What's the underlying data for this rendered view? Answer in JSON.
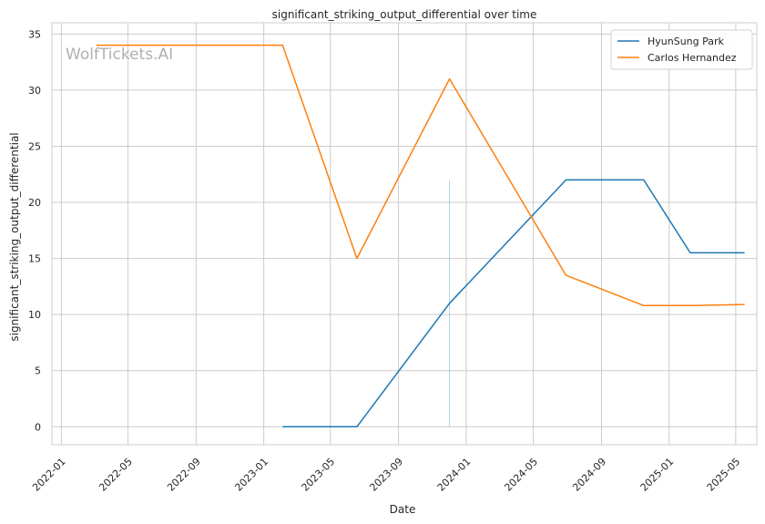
{
  "chart_data": {
    "type": "line",
    "title": "significant_striking_output_differential over time",
    "xlabel": "Date",
    "ylabel": "significant_striking_output_differential",
    "watermark": "WolfTickets.AI",
    "x_ticks": [
      "2022-01",
      "2022-05",
      "2022-09",
      "2023-01",
      "2023-05",
      "2023-09",
      "2024-01",
      "2024-05",
      "2024-09",
      "2025-01",
      "2025-05"
    ],
    "y_ticks": [
      "0",
      "5",
      "10",
      "15",
      "20",
      "25",
      "30",
      "35"
    ],
    "xlim": [
      "2021-12-15",
      "2025-06-08"
    ],
    "ylim": [
      -1.6,
      36.0
    ],
    "grid": true,
    "legend_position": "top-right",
    "series": [
      {
        "name": "HyunSung Park",
        "color": "#1f77b4",
        "points": [
          [
            "2023-02-04",
            0
          ],
          [
            "2023-06-18",
            0
          ],
          [
            "2023-12-02",
            11
          ],
          [
            "2024-06-29",
            22
          ],
          [
            "2024-11-16",
            22
          ],
          [
            "2025-02-08",
            15.5
          ],
          [
            "2025-05-17",
            15.5
          ]
        ]
      },
      {
        "name": "Carlos Hernandez",
        "color": "#ff7f0e",
        "points": [
          [
            "2022-03-05",
            34
          ],
          [
            "2023-02-04",
            34
          ],
          [
            "2023-06-18",
            15
          ],
          [
            "2023-12-02",
            31
          ],
          [
            "2024-06-29",
            13.5
          ],
          [
            "2024-11-16",
            10.8
          ],
          [
            "2025-02-08",
            10.8
          ],
          [
            "2025-05-17",
            10.9
          ]
        ]
      }
    ],
    "vertical_marks": [
      {
        "date": "2023-12-02",
        "from": 0,
        "to": 22,
        "color": "#1f77b4"
      }
    ]
  }
}
